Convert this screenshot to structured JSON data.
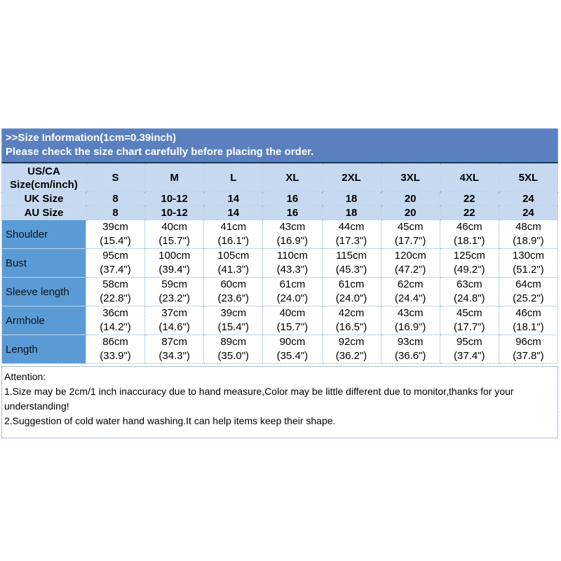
{
  "banner": {
    "line1": ">>Size Information(1cm=0.39inch)",
    "line2": "Please check the size chart carefully before placing the order.",
    "bg_color": "#5b80bf",
    "text_color": "#ffffff"
  },
  "size_table": {
    "corner_line1": "US/CA",
    "corner_line2": "Size(cm/inch)",
    "sizes": [
      "S",
      "M",
      "L",
      "XL",
      "2XL",
      "3XL",
      "4XL",
      "5XL"
    ],
    "uk_label": "UK Size",
    "uk_values": [
      "8",
      "10-12",
      "14",
      "16",
      "18",
      "20",
      "22",
      "24"
    ],
    "au_label": "AU Size",
    "au_values": [
      "8",
      "10-12",
      "14",
      "16",
      "18",
      "20",
      "22",
      "24"
    ],
    "rows": [
      {
        "label": "Shoulder",
        "values": [
          [
            "39cm",
            "(15.4\")"
          ],
          [
            "40cm",
            "(15.7\")"
          ],
          [
            "41cm",
            "(16.1\")"
          ],
          [
            "43cm",
            "(16.9\")"
          ],
          [
            "44cm",
            "(17.3\")"
          ],
          [
            "45cm",
            "(17.7\")"
          ],
          [
            "46cm",
            "(18.1\")"
          ],
          [
            "48cm",
            "(18.9\")"
          ]
        ]
      },
      {
        "label": "Bust",
        "values": [
          [
            "95cm",
            "(37.4\")"
          ],
          [
            "100cm",
            "(39.4\")"
          ],
          [
            "105cm",
            "(41.3\")"
          ],
          [
            "110cm",
            "(43.3\")"
          ],
          [
            "115cm",
            "(45.3\")"
          ],
          [
            "120cm",
            "(47.2\")"
          ],
          [
            "125cm",
            "(49.2\")"
          ],
          [
            "130cm",
            "(51.2\")"
          ]
        ]
      },
      {
        "label": "Sleeve length",
        "values": [
          [
            "58cm",
            "(22.8\")"
          ],
          [
            "59cm",
            "(23.2\")"
          ],
          [
            "60cm",
            "(23.6\")"
          ],
          [
            "61cm",
            "(24.0\")"
          ],
          [
            "61cm",
            "(24.0\")"
          ],
          [
            "62cm",
            "(24.4\")"
          ],
          [
            "63cm",
            "(24.8\")"
          ],
          [
            "64cm",
            "(25.2\")"
          ]
        ]
      },
      {
        "label": "Armhole",
        "values": [
          [
            "36cm",
            "(14.2\")"
          ],
          [
            "37cm",
            "(14.6\")"
          ],
          [
            "39cm",
            "(15.4\")"
          ],
          [
            "40cm",
            "(15.7\")"
          ],
          [
            "42cm",
            "(16.5\")"
          ],
          [
            "43cm",
            "(16.9\")"
          ],
          [
            "45cm",
            "(17.7\")"
          ],
          [
            "46cm",
            "(18.1\")"
          ]
        ]
      },
      {
        "label": "Length",
        "values": [
          [
            "86cm",
            "(33.9\")"
          ],
          [
            "87cm",
            "(34.3\")"
          ],
          [
            "89cm",
            "(35.0\")"
          ],
          [
            "90cm",
            "(35.4\")"
          ],
          [
            "92cm",
            "(36.2\")"
          ],
          [
            "93cm",
            "(36.6\")"
          ],
          [
            "95cm",
            "(37.4\")"
          ],
          [
            "96cm",
            "(37.8\")"
          ]
        ]
      }
    ],
    "header_bg_color": "#c6d9f1",
    "label_bg_color": "#5b9bd5",
    "accent_border_color": "#17375e"
  },
  "attention": {
    "title": "Attention:",
    "line1": "1.Size may be 2cm/1 inch inaccuracy due to hand measure,Color may be little different due to monitor,thanks for your understanding!",
    "line2": "2.Suggestion of cold water hand washing.It can help items keep their shape."
  }
}
